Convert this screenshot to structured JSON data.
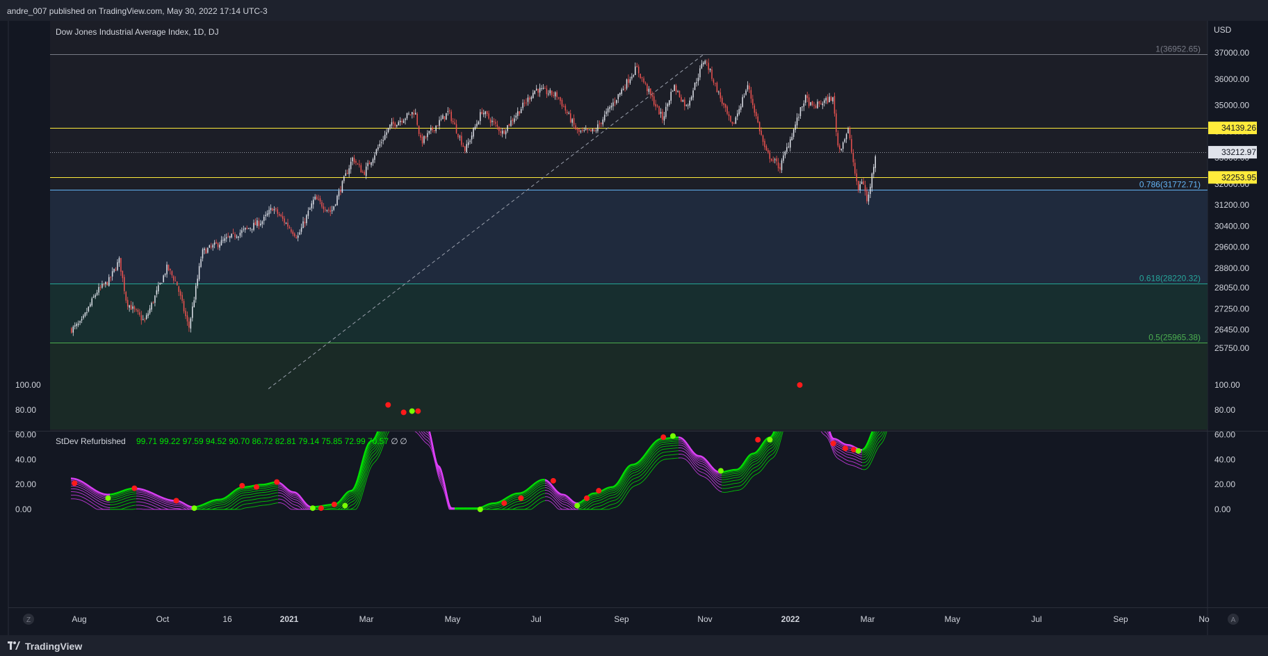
{
  "header": {
    "publisher": "andre_007 published on TradingView.com, May 30, 2022 17:14 UTC-3"
  },
  "footer": {
    "brand": "TradingView"
  },
  "colors": {
    "bg": "#131722",
    "up_candle": "#e0e3eb",
    "down_candle": "#ef5350",
    "level_yellow": "#ffeb3b",
    "fib_786": "#64b5f6",
    "fib_618": "#26a69a",
    "fib_5": "#4caf50",
    "indicator_green": "#00e600",
    "indicator_magenta": "#e040fb",
    "marker_red": "#ff1a1a",
    "marker_green": "#76ff03"
  },
  "chart_data": [
    {
      "type": "candlestick",
      "title": "Dow Jones Industrial Average Index, 1D, DJ",
      "currency_label": "USD",
      "y_ticks": [
        "37000.00",
        "36000.00",
        "35000.00",
        "34000.00",
        "33000.00",
        "32000.00",
        "31200.00",
        "30400.00",
        "29600.00",
        "28800.00",
        "28050.00",
        "27250.00",
        "26450.00",
        "25750.00"
      ],
      "x_ticks": [
        "Aug",
        "Oct",
        "16",
        "2021",
        "Mar",
        "May",
        "Jul",
        "Sep",
        "Nov",
        "2022",
        "Mar",
        "May",
        "Jul",
        "Sep",
        "No"
      ],
      "price_path": [
        [
          "2020-07-24",
          26469
        ],
        [
          "2020-08-01",
          26700
        ],
        [
          "2020-08-14",
          27900
        ],
        [
          "2020-08-24",
          28300
        ],
        [
          "2020-09-02",
          29100
        ],
        [
          "2020-09-08",
          27500
        ],
        [
          "2020-09-23",
          26760
        ],
        [
          "2020-10-12",
          28837
        ],
        [
          "2020-10-20",
          28200
        ],
        [
          "2020-10-30",
          26500
        ],
        [
          "2020-11-06",
          28300
        ],
        [
          "2020-11-10",
          29400
        ],
        [
          "2020-12-01",
          29900
        ],
        [
          "2020-12-31",
          30606
        ],
        [
          "2021-01-08",
          31100
        ],
        [
          "2021-01-29",
          29983
        ],
        [
          "2021-02-12",
          31450
        ],
        [
          "2021-02-26",
          30932
        ],
        [
          "2021-03-16",
          33000
        ],
        [
          "2021-03-25",
          32400
        ],
        [
          "2021-04-16",
          34200
        ],
        [
          "2021-05-07",
          34777
        ],
        [
          "2021-05-12",
          33587
        ],
        [
          "2021-06-04",
          34756
        ],
        [
          "2021-06-18",
          33290
        ],
        [
          "2021-07-02",
          34786
        ],
        [
          "2021-07-19",
          33962
        ],
        [
          "2021-08-16",
          35625
        ],
        [
          "2021-09-03",
          35369
        ],
        [
          "2021-09-20",
          33970
        ],
        [
          "2021-10-04",
          34002
        ],
        [
          "2021-11-08",
          36432
        ],
        [
          "2021-11-30",
          34483
        ],
        [
          "2021-12-09",
          35754
        ],
        [
          "2021-12-20",
          34932
        ],
        [
          "2022-01-04",
          36799
        ],
        [
          "2022-01-27",
          34160
        ],
        [
          "2022-02-09",
          35768
        ],
        [
          "2022-02-24",
          33223
        ],
        [
          "2022-03-08",
          32632
        ],
        [
          "2022-03-29",
          35294
        ],
        [
          "2022-04-04",
          34921
        ],
        [
          "2022-04-21",
          35300
        ],
        [
          "2022-04-26",
          33240
        ],
        [
          "2022-05-04",
          34061
        ],
        [
          "2022-05-12",
          31730
        ],
        [
          "2022-05-16",
          32223
        ],
        [
          "2022-05-20",
          31262
        ],
        [
          "2022-05-27",
          33213
        ]
      ],
      "horizontal_levels": [
        {
          "name": "resistance",
          "value": 34139.26,
          "label": "34139.26"
        },
        {
          "name": "support",
          "value": 32253.95,
          "label": "32253.95"
        }
      ],
      "last_price": {
        "value": 33212.97,
        "label": "33212.97"
      },
      "fib_levels": [
        {
          "level": "1",
          "value": 36952.65,
          "label": "1(36952.65)"
        },
        {
          "level": "0.786",
          "value": 31772.71,
          "label": "0.786(31772.71)"
        },
        {
          "level": "0.618",
          "value": 28220.32,
          "label": "0.618(28220.32)"
        },
        {
          "level": "0.5",
          "value": 25965.38,
          "label": "0.5(25965.38)"
        }
      ],
      "trend_line": {
        "from": [
          "2021-01-05",
          24200
        ],
        "to": [
          "2022-01-04",
          36952.65
        ]
      }
    },
    {
      "type": "line",
      "title": "StDev Refurbished",
      "legend_values": [
        "99.71",
        "99.22",
        "97.59",
        "94.52",
        "90.70",
        "86.72",
        "82.81",
        "79.14",
        "75.85",
        "72.99",
        "70.57",
        "∅",
        "∅"
      ],
      "y_ticks": [
        "100.00",
        "80.00",
        "60.00",
        "40.00",
        "20.00",
        "0.00"
      ],
      "ylim": [
        0,
        100
      ],
      "main_series": [
        [
          "2020-07-24",
          25
        ],
        [
          "2020-08-24",
          12
        ],
        [
          "2020-09-15",
          17
        ],
        [
          "2020-10-20",
          7
        ],
        [
          "2020-11-03",
          2
        ],
        [
          "2020-11-25",
          8
        ],
        [
          "2020-12-15",
          18
        ],
        [
          "2020-12-31",
          20
        ],
        [
          "2021-01-12",
          22
        ],
        [
          "2021-01-26",
          14
        ],
        [
          "2021-02-10",
          2
        ],
        [
          "2021-03-01",
          4
        ],
        [
          "2021-03-15",
          15
        ],
        [
          "2021-04-01",
          55
        ],
        [
          "2021-04-16",
          83
        ],
        [
          "2021-05-03",
          80
        ],
        [
          "2021-05-17",
          68
        ],
        [
          "2021-05-27",
          35
        ],
        [
          "2021-06-07",
          1
        ],
        [
          "2021-06-28",
          1
        ],
        [
          "2021-07-12",
          5
        ],
        [
          "2021-08-02",
          13
        ],
        [
          "2021-08-23",
          24
        ],
        [
          "2021-09-08",
          12
        ],
        [
          "2021-09-20",
          5
        ],
        [
          "2021-10-04",
          13
        ],
        [
          "2021-10-19",
          18
        ],
        [
          "2021-11-05",
          36
        ],
        [
          "2021-11-30",
          57
        ],
        [
          "2021-12-14",
          58
        ],
        [
          "2021-12-31",
          43
        ],
        [
          "2022-01-17",
          30
        ],
        [
          "2022-01-31",
          32
        ],
        [
          "2022-02-14",
          45
        ],
        [
          "2022-02-28",
          58
        ],
        [
          "2022-03-16",
          100
        ],
        [
          "2022-03-25",
          100
        ],
        [
          "2022-04-14",
          75
        ],
        [
          "2022-04-22",
          57
        ],
        [
          "2022-05-04",
          52
        ],
        [
          "2022-05-16",
          48
        ],
        [
          "2022-05-30",
          70
        ],
        [
          "2022-06-10",
          100
        ]
      ],
      "markers": [
        {
          "date": "2020-07-27",
          "value": 21,
          "color": "red"
        },
        {
          "date": "2020-08-24",
          "value": 9,
          "color": "green"
        },
        {
          "date": "2020-09-15",
          "value": 17,
          "color": "red"
        },
        {
          "date": "2020-10-20",
          "value": 7,
          "color": "red"
        },
        {
          "date": "2020-11-04",
          "value": 1,
          "color": "green"
        },
        {
          "date": "2020-12-14",
          "value": 19,
          "color": "red"
        },
        {
          "date": "2020-12-26",
          "value": 18,
          "color": "red"
        },
        {
          "date": "2021-01-12",
          "value": 22,
          "color": "red"
        },
        {
          "date": "2021-02-11",
          "value": 1,
          "color": "green"
        },
        {
          "date": "2021-02-18",
          "value": 1,
          "color": "red"
        },
        {
          "date": "2021-03-01",
          "value": 4,
          "color": "red"
        },
        {
          "date": "2021-03-10",
          "value": 3,
          "color": "green"
        },
        {
          "date": "2021-04-15",
          "value": 84,
          "color": "red"
        },
        {
          "date": "2021-04-28",
          "value": 78,
          "color": "red"
        },
        {
          "date": "2021-05-05",
          "value": 79,
          "color": "green"
        },
        {
          "date": "2021-05-10",
          "value": 79,
          "color": "red"
        },
        {
          "date": "2021-07-01",
          "value": 0,
          "color": "green"
        },
        {
          "date": "2021-07-21",
          "value": 5,
          "color": "red"
        },
        {
          "date": "2021-08-04",
          "value": 9,
          "color": "red"
        },
        {
          "date": "2021-08-31",
          "value": 23,
          "color": "red"
        },
        {
          "date": "2021-09-20",
          "value": 3,
          "color": "green"
        },
        {
          "date": "2021-09-28",
          "value": 9,
          "color": "red"
        },
        {
          "date": "2021-10-08",
          "value": 15,
          "color": "red"
        },
        {
          "date": "2021-12-01",
          "value": 58,
          "color": "red"
        },
        {
          "date": "2021-12-09",
          "value": 59,
          "color": "green"
        },
        {
          "date": "2022-01-18",
          "value": 31,
          "color": "green"
        },
        {
          "date": "2022-02-18",
          "value": 56,
          "color": "red"
        },
        {
          "date": "2022-02-28",
          "value": 56,
          "color": "green"
        },
        {
          "date": "2022-03-25",
          "value": 100,
          "color": "red"
        },
        {
          "date": "2022-04-22",
          "value": 53,
          "color": "red"
        },
        {
          "date": "2022-05-02",
          "value": 49,
          "color": "red"
        },
        {
          "date": "2022-05-09",
          "value": 48,
          "color": "red"
        },
        {
          "date": "2022-05-13",
          "value": 47,
          "color": "green"
        }
      ]
    }
  ]
}
